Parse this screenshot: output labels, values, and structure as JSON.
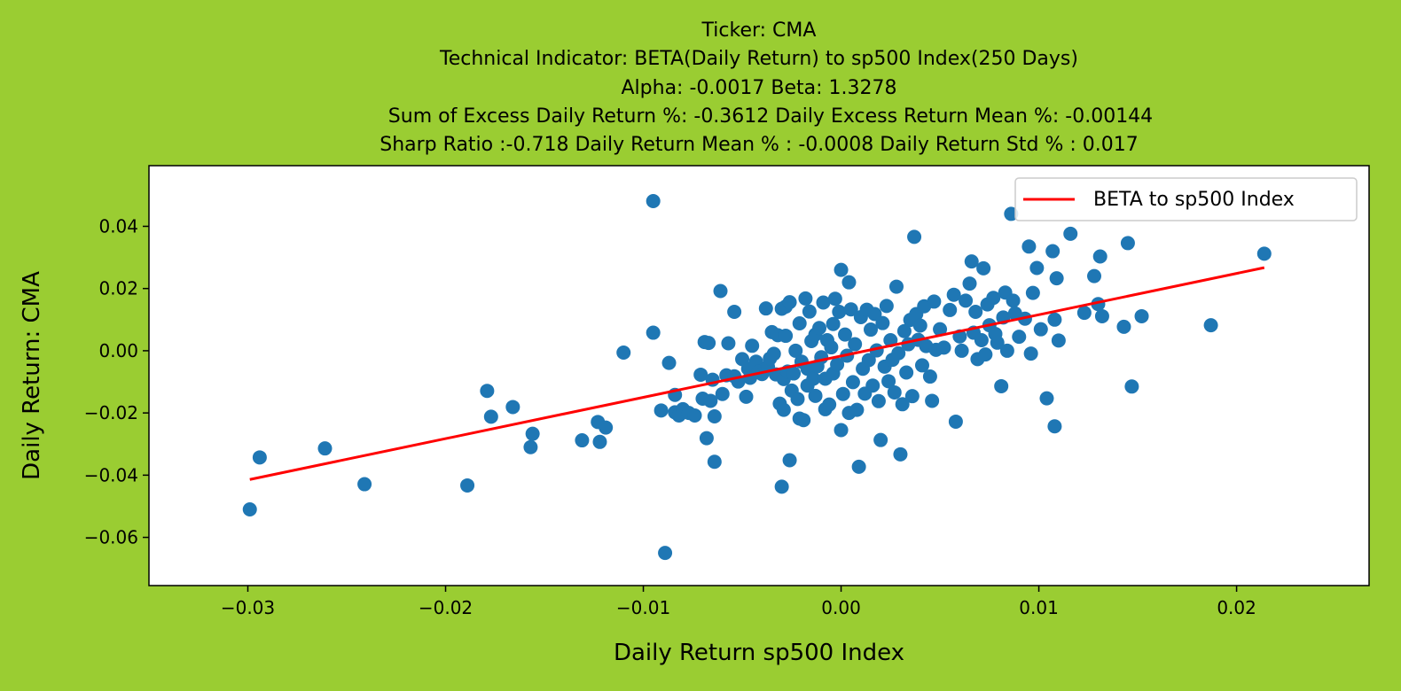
{
  "chart_data": {
    "type": "scatter",
    "title_lines": [
      "Ticker: CMA",
      "Technical Indicator: BETA(Daily Return) to sp500 Index(250 Days)",
      "Alpha: -0.0017   Beta: 1.3278",
      "Sum of Excess Daily Return %: -0.3612   Daily Excess Return Mean %: -0.00144",
      "Sharp Ratio :-0.718    Daily Return Mean % : -0.0008    Daily Return Std % : 0.017"
    ],
    "xlabel": "Daily Return sp500 Index",
    "ylabel": "Daily Return: CMA",
    "xlim": [
      -0.035,
      0.0267
    ],
    "ylim": [
      -0.0755,
      0.0595
    ],
    "xticks": [
      -0.03,
      -0.02,
      -0.01,
      0.0,
      0.01,
      0.02
    ],
    "xtick_labels": [
      "−0.03",
      "−0.02",
      "−0.01",
      "0.00",
      "0.01",
      "0.02"
    ],
    "yticks": [
      0.04,
      0.02,
      0.0,
      -0.02,
      -0.04,
      -0.06
    ],
    "ytick_labels": [
      "0.04",
      "0.02",
      "0.00",
      "−0.02",
      "−0.04",
      "−0.06"
    ],
    "legend": {
      "label": "BETA to sp500 Index",
      "placement": "upper right"
    },
    "colors": {
      "background": "#9acd32",
      "plot_bg": "#ffffff",
      "points": "#1f77b4",
      "line": "#ff0000"
    },
    "regression_line": {
      "alpha": -0.0017,
      "beta": 1.3278,
      "x_range": [
        -0.0299,
        0.0214
      ]
    },
    "points": [
      [
        -0.0299,
        -0.051
      ],
      [
        -0.0294,
        -0.0343
      ],
      [
        -0.0261,
        -0.0314
      ],
      [
        -0.0241,
        -0.0429
      ],
      [
        -0.0189,
        -0.0433
      ],
      [
        -0.0179,
        -0.0129
      ],
      [
        -0.0177,
        -0.0212
      ],
      [
        -0.0166,
        -0.0181
      ],
      [
        -0.0157,
        -0.031
      ],
      [
        -0.0156,
        -0.0267
      ],
      [
        -0.0131,
        -0.0288
      ],
      [
        -0.0123,
        -0.0229
      ],
      [
        -0.0122,
        -0.0293
      ],
      [
        -0.0119,
        -0.0247
      ],
      [
        -0.011,
        -0.0006
      ],
      [
        -0.0095,
        0.0481
      ],
      [
        -0.0095,
        0.0058
      ],
      [
        -0.0091,
        -0.0192
      ],
      [
        -0.0089,
        -0.065
      ],
      [
        -0.0087,
        -0.0039
      ],
      [
        -0.0084,
        -0.0142
      ],
      [
        -0.0084,
        -0.0198
      ],
      [
        -0.0082,
        -0.0208
      ],
      [
        -0.008,
        -0.0188
      ],
      [
        -0.0077,
        -0.02
      ],
      [
        -0.0074,
        -0.0208
      ],
      [
        -0.0071,
        -0.0077
      ],
      [
        -0.007,
        -0.0154
      ],
      [
        -0.0069,
        0.0028
      ],
      [
        -0.0068,
        -0.0281
      ],
      [
        -0.0067,
        0.0025
      ],
      [
        -0.0066,
        -0.0161
      ],
      [
        -0.0065,
        -0.0093
      ],
      [
        -0.0064,
        -0.0211
      ],
      [
        -0.0064,
        -0.0357
      ],
      [
        -0.0061,
        0.0192
      ],
      [
        -0.006,
        -0.0139
      ],
      [
        -0.0058,
        -0.0079
      ],
      [
        -0.0057,
        0.0024
      ],
      [
        -0.0054,
        0.0125
      ],
      [
        -0.0054,
        -0.0082
      ],
      [
        -0.0052,
        -0.0099
      ],
      [
        -0.005,
        -0.0027
      ],
      [
        -0.0048,
        -0.0148
      ],
      [
        -0.0047,
        -0.0058
      ],
      [
        -0.0046,
        -0.0087
      ],
      [
        -0.0045,
        0.0016
      ],
      [
        -0.0043,
        -0.0035
      ],
      [
        -0.0042,
        -0.0068
      ],
      [
        -0.004,
        -0.0075
      ],
      [
        -0.0038,
        0.0136
      ],
      [
        -0.0037,
        -0.0051
      ],
      [
        -0.0036,
        -0.0025
      ],
      [
        -0.0035,
        0.006
      ],
      [
        -0.0034,
        -0.001
      ],
      [
        -0.0033,
        -0.0076
      ],
      [
        -0.0032,
        0.005
      ],
      [
        -0.0031,
        -0.017
      ],
      [
        -0.003,
        0.0135
      ],
      [
        -0.003,
        -0.0437
      ],
      [
        -0.0029,
        -0.019
      ],
      [
        -0.0029,
        -0.0091
      ],
      [
        -0.0028,
        0.0142
      ],
      [
        -0.0028,
        0.0048
      ],
      [
        -0.0027,
        -0.0067
      ],
      [
        -0.0026,
        0.0156
      ],
      [
        -0.0026,
        -0.0352
      ],
      [
        -0.0025,
        -0.0128
      ],
      [
        -0.0024,
        -0.0073
      ],
      [
        -0.0023,
        0.0
      ],
      [
        -0.0022,
        -0.0155
      ],
      [
        -0.0021,
        -0.0218
      ],
      [
        -0.0021,
        0.0088
      ],
      [
        -0.002,
        -0.0035
      ],
      [
        -0.0019,
        -0.0223
      ],
      [
        -0.0018,
        0.0168
      ],
      [
        -0.0017,
        -0.0058
      ],
      [
        -0.0017,
        -0.0112
      ],
      [
        -0.0016,
        0.0126
      ],
      [
        -0.0015,
        0.0031
      ],
      [
        -0.0014,
        -0.009
      ],
      [
        -0.0013,
        -0.0145
      ],
      [
        -0.0013,
        0.0052
      ],
      [
        -0.0012,
        -0.005
      ],
      [
        -0.0011,
        0.0073
      ],
      [
        -0.001,
        -0.0021
      ],
      [
        -0.0009,
        0.0155
      ],
      [
        -0.0008,
        -0.0188
      ],
      [
        -0.0008,
        -0.009
      ],
      [
        -0.0007,
        0.0034
      ],
      [
        -0.0006,
        -0.0173
      ],
      [
        -0.0005,
        0.0011
      ],
      [
        -0.0004,
        0.0086
      ],
      [
        -0.0004,
        -0.0073
      ],
      [
        -0.0003,
        0.0167
      ],
      [
        -0.0002,
        -0.0044
      ],
      [
        -0.0001,
        0.0125
      ],
      [
        0.0,
        -0.0255
      ],
      [
        0.0,
        0.026
      ],
      [
        0.0001,
        -0.0139
      ],
      [
        0.0002,
        0.0052
      ],
      [
        0.0003,
        -0.0016
      ],
      [
        0.0004,
        -0.02
      ],
      [
        0.0004,
        0.022
      ],
      [
        0.0005,
        0.0133
      ],
      [
        0.0006,
        -0.0101
      ],
      [
        0.0007,
        0.0021
      ],
      [
        0.0008,
        -0.019
      ],
      [
        0.0009,
        -0.0373
      ],
      [
        0.001,
        0.0108
      ],
      [
        0.0011,
        -0.0058
      ],
      [
        0.0012,
        -0.0138
      ],
      [
        0.0013,
        0.0132
      ],
      [
        0.0014,
        -0.003
      ],
      [
        0.0015,
        0.0068
      ],
      [
        0.0016,
        -0.0112
      ],
      [
        0.0017,
        0.0118
      ],
      [
        0.0018,
        0.0001
      ],
      [
        0.0019,
        -0.0162
      ],
      [
        0.002,
        -0.0287
      ],
      [
        0.0021,
        0.0089
      ],
      [
        0.0022,
        -0.0051
      ],
      [
        0.0023,
        0.0144
      ],
      [
        0.0024,
        -0.0098
      ],
      [
        0.0025,
        0.0034
      ],
      [
        0.0026,
        -0.0029
      ],
      [
        0.0027,
        -0.0134
      ],
      [
        0.0028,
        0.0206
      ],
      [
        0.0029,
        -0.0008
      ],
      [
        0.003,
        -0.0333
      ],
      [
        0.0031,
        -0.0172
      ],
      [
        0.0032,
        0.0063
      ],
      [
        0.0033,
        -0.007
      ],
      [
        0.0034,
        0.0021
      ],
      [
        0.0035,
        0.0099
      ],
      [
        0.0036,
        -0.0146
      ],
      [
        0.0037,
        0.0366
      ],
      [
        0.0038,
        0.0118
      ],
      [
        0.0039,
        0.0035
      ],
      [
        0.004,
        0.0081
      ],
      [
        0.0041,
        -0.0047
      ],
      [
        0.0042,
        0.0143
      ],
      [
        0.0043,
        0.0015
      ],
      [
        0.0045,
        -0.0083
      ],
      [
        0.0046,
        -0.0161
      ],
      [
        0.0047,
        0.0158
      ],
      [
        0.0048,
        0.0003
      ],
      [
        0.005,
        0.0069
      ],
      [
        0.0052,
        0.001
      ],
      [
        0.0055,
        0.0131
      ],
      [
        0.0057,
        0.018
      ],
      [
        0.0058,
        -0.0228
      ],
      [
        0.006,
        0.0046
      ],
      [
        0.0061,
        0.0
      ],
      [
        0.0063,
        0.0161
      ],
      [
        0.0065,
        0.0216
      ],
      [
        0.0066,
        0.0287
      ],
      [
        0.0067,
        0.0058
      ],
      [
        0.0068,
        0.0125
      ],
      [
        0.0069,
        -0.0027
      ],
      [
        0.0071,
        0.0034
      ],
      [
        0.0072,
        0.0265
      ],
      [
        0.0073,
        -0.0012
      ],
      [
        0.0074,
        0.0149
      ],
      [
        0.0075,
        0.0082
      ],
      [
        0.0077,
        0.017
      ],
      [
        0.0078,
        0.0054
      ],
      [
        0.0079,
        0.0026
      ],
      [
        0.0081,
        -0.0114
      ],
      [
        0.0082,
        0.0107
      ],
      [
        0.0083,
        0.0187
      ],
      [
        0.0084,
        0.0
      ],
      [
        0.0086,
        0.044
      ],
      [
        0.0087,
        0.0161
      ],
      [
        0.0088,
        0.012
      ],
      [
        0.009,
        0.0045
      ],
      [
        0.0093,
        0.0103
      ],
      [
        0.0095,
        0.0335
      ],
      [
        0.0096,
        -0.0009
      ],
      [
        0.0097,
        0.0186
      ],
      [
        0.0099,
        0.0266
      ],
      [
        0.0101,
        0.0069
      ],
      [
        0.0104,
        -0.0153
      ],
      [
        0.0107,
        0.032
      ],
      [
        0.0108,
        0.01
      ],
      [
        0.0108,
        -0.0243
      ],
      [
        0.0109,
        0.0233
      ],
      [
        0.011,
        0.0033
      ],
      [
        0.0116,
        0.0376
      ],
      [
        0.0123,
        0.0122
      ],
      [
        0.0128,
        0.024
      ],
      [
        0.013,
        0.015
      ],
      [
        0.0131,
        0.0303
      ],
      [
        0.0132,
        0.0111
      ],
      [
        0.0143,
        0.0077
      ],
      [
        0.0145,
        0.0346
      ],
      [
        0.0147,
        -0.0115
      ],
      [
        0.0152,
        0.0111
      ],
      [
        0.0187,
        0.0082
      ],
      [
        0.0214,
        0.0312
      ]
    ]
  }
}
